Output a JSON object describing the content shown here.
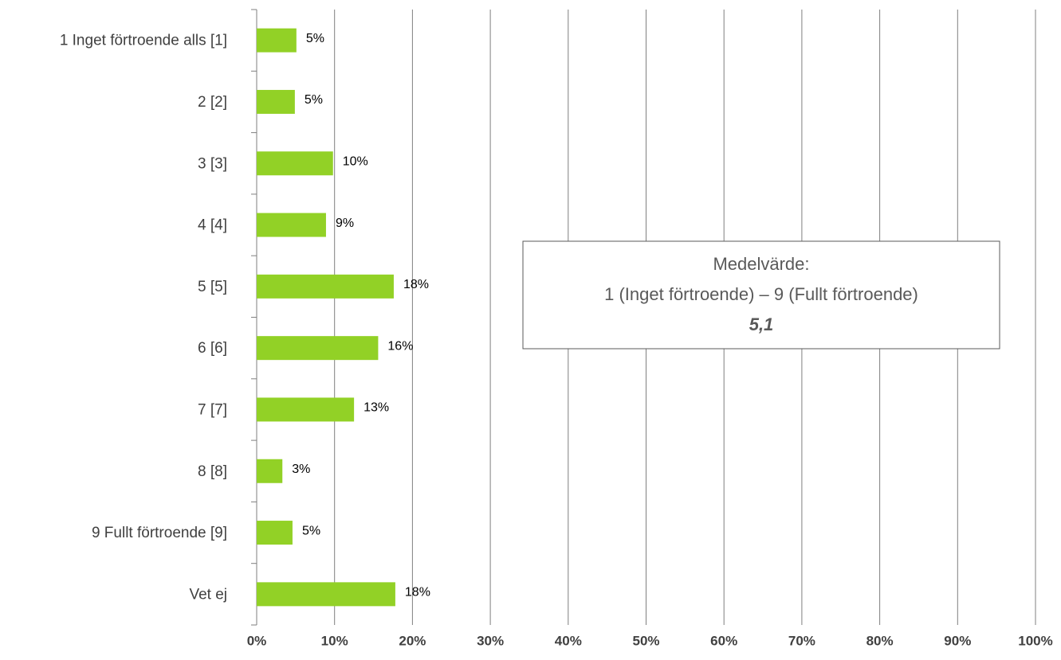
{
  "chart_data": {
    "type": "bar",
    "orientation": "horizontal",
    "categories": [
      "1 Inget förtroende alls [1]",
      "2 [2]",
      "3 [3]",
      "4 [4]",
      "5 [5]",
      "6 [6]",
      "7 [7]",
      "8 [8]",
      "9 Fullt förtroende [9]",
      "Vet ej"
    ],
    "values": [
      5.1,
      4.9,
      9.8,
      8.9,
      17.6,
      15.6,
      12.5,
      3.3,
      4.6,
      17.8
    ],
    "value_labels": [
      "5%",
      "5%",
      "10%",
      "9%",
      "18%",
      "16%",
      "13%",
      "3%",
      "5%",
      "18%"
    ],
    "color": "#92d126",
    "xlim": [
      0,
      100
    ],
    "xticks": [
      {
        "value": 0,
        "label": "0%"
      },
      {
        "value": 10,
        "label": "10%"
      },
      {
        "value": 20,
        "label": "20%"
      },
      {
        "value": 30,
        "label": "30%"
      },
      {
        "value": 40,
        "label": "40%"
      },
      {
        "value": 50,
        "label": "50%"
      },
      {
        "value": 60,
        "label": "60%"
      },
      {
        "value": 70,
        "label": "70%"
      },
      {
        "value": 80,
        "label": "80%"
      },
      {
        "value": 90,
        "label": "90%"
      },
      {
        "value": 100,
        "label": "100%"
      }
    ],
    "grid": true,
    "annotation": [
      "Medelvärde:",
      "1 (Inget förtroende) – 9 (Fullt förtroende)",
      "5,1"
    ]
  }
}
